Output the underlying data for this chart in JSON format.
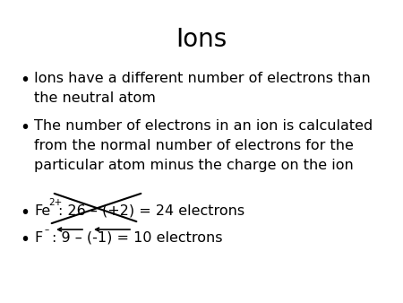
{
  "title": "Ions",
  "background_color": "#ffffff",
  "title_fontsize": 20,
  "bullet_fontsize": 11.5,
  "bullet1_line1": "Ions have a different number of electrons than",
  "bullet1_line2": "the neutral atom",
  "bullet2_line1": "The number of electrons in an ion is calculated",
  "bullet2_line2": "from the normal number of electrons for the",
  "bullet2_line3": "particular atom minus the charge on the ion",
  "bullet3_main": ": 26 – (+2) = 24 electrons",
  "bullet4_main": ": 9 – (-1) = 10 electrons",
  "fe_label": "Fe",
  "fe_superscript": "2+",
  "f_label": "F",
  "f_superscript": "–",
  "text_color": "#000000",
  "crossout_color": "#000000",
  "arrow_color": "#000000"
}
